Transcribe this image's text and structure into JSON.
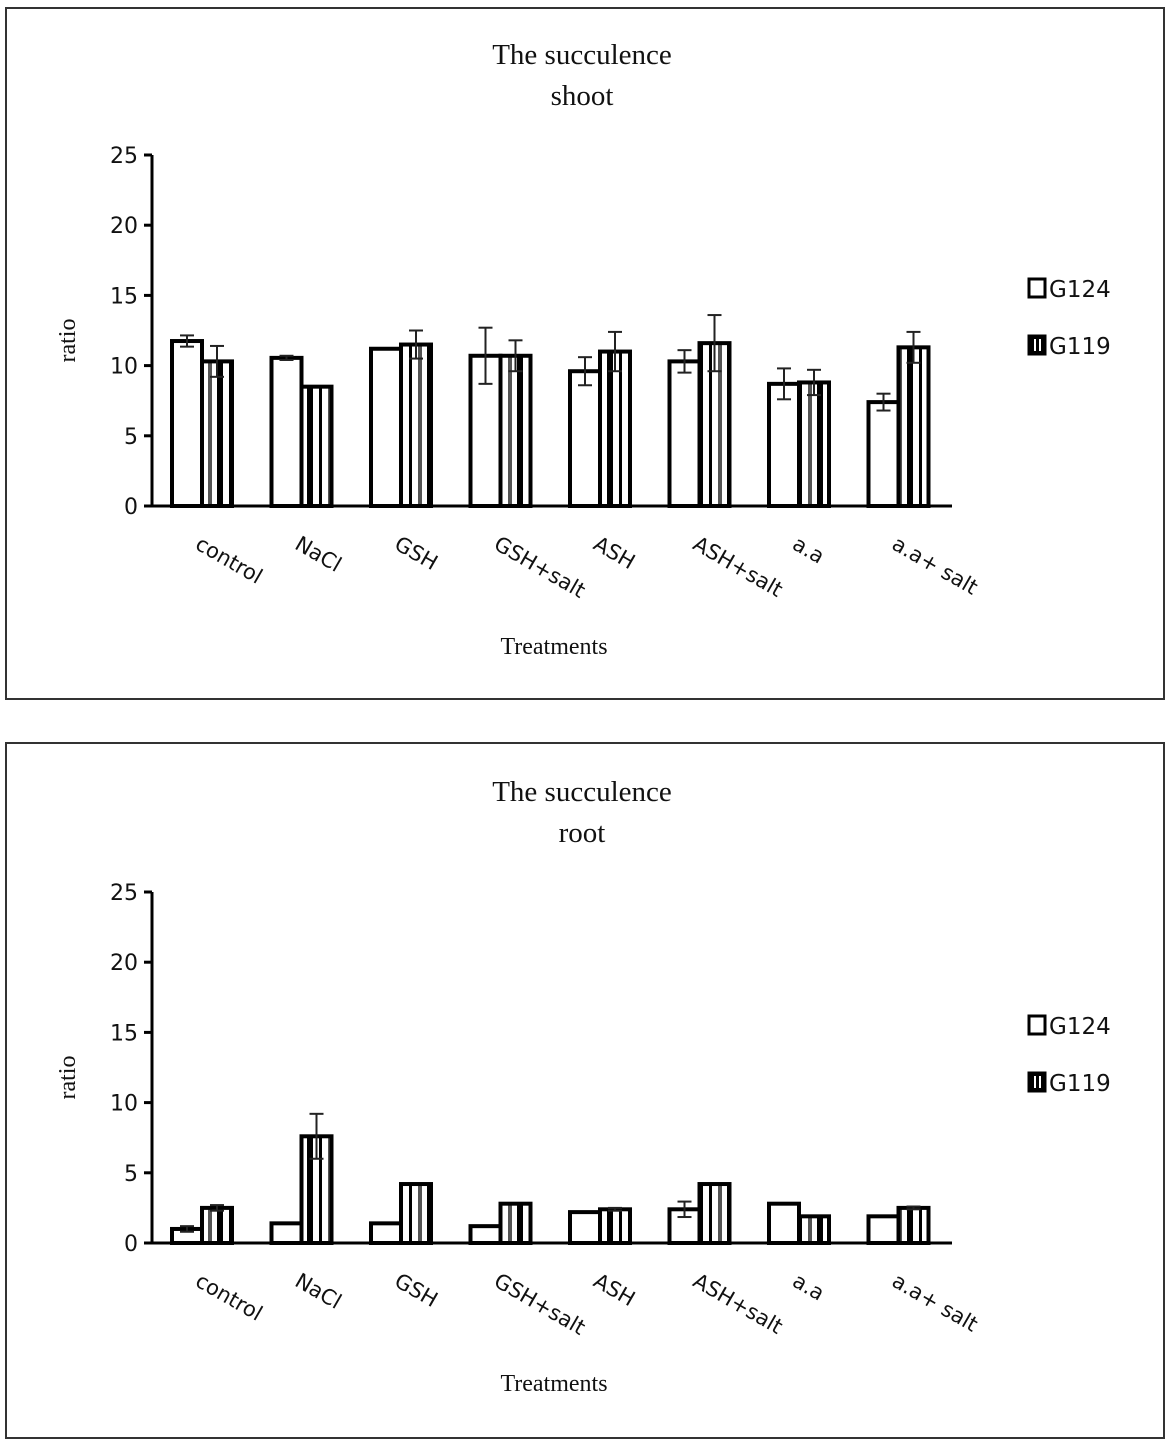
{
  "chart_data": [
    {
      "type": "bar",
      "title": "The succulence shoot",
      "title_lines": [
        "The succulence",
        "shoot"
      ],
      "xlabel": "Treatments",
      "ylabel": "ratio",
      "ylim": [
        0,
        25
      ],
      "yticks": [
        0,
        5,
        10,
        15,
        20,
        25
      ],
      "grid": false,
      "legend_position": "right",
      "categories": [
        "control",
        "NaCl",
        "GSH",
        "GSH+salt",
        "ASH",
        "ASH+salt",
        "a.a",
        "a.a+ salt"
      ],
      "series": [
        {
          "name": "G124",
          "pattern": "white",
          "values": [
            11.75,
            10.55,
            11.2,
            10.7,
            9.6,
            10.3,
            8.7,
            7.4
          ],
          "errors": [
            0.4,
            0.15,
            0.0,
            2.0,
            1.0,
            0.8,
            1.1,
            0.6
          ]
        },
        {
          "name": "G119",
          "pattern": "vertical-stripes",
          "values": [
            10.3,
            8.5,
            11.5,
            10.7,
            11.0,
            11.6,
            8.8,
            11.3
          ],
          "errors": [
            1.1,
            0.05,
            1.0,
            1.1,
            1.4,
            2.0,
            0.9,
            1.1
          ]
        }
      ]
    },
    {
      "type": "bar",
      "title": "The succulence root",
      "title_lines": [
        "The succulence",
        "root"
      ],
      "xlabel": "Treatments",
      "ylabel": "ratio",
      "ylim": [
        0,
        25
      ],
      "yticks": [
        0,
        5,
        10,
        15,
        20,
        25
      ],
      "grid": false,
      "legend_position": "right",
      "categories": [
        "control",
        "NaCl",
        "GSH",
        "GSH+salt",
        "ASH",
        "ASH+salt",
        "a.a",
        "a.a+ salt"
      ],
      "series": [
        {
          "name": "G124",
          "pattern": "white",
          "values": [
            1.0,
            1.4,
            1.4,
            1.2,
            2.2,
            2.4,
            2.8,
            1.9
          ],
          "errors": [
            0.2,
            0.0,
            0.0,
            0.0,
            0.05,
            0.55,
            0.0,
            0.0
          ]
        },
        {
          "name": "G119",
          "pattern": "vertical-stripes",
          "values": [
            2.5,
            7.6,
            4.2,
            2.8,
            2.4,
            4.2,
            1.9,
            2.5
          ],
          "errors": [
            0.2,
            1.6,
            0.0,
            0.05,
            0.1,
            0.05,
            0.05,
            0.1
          ]
        }
      ]
    }
  ]
}
